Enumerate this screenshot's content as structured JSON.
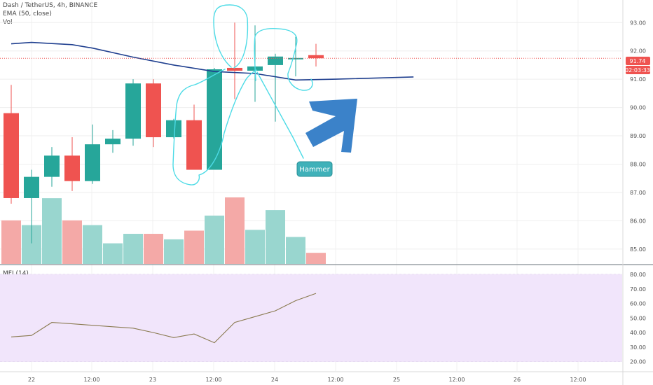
{
  "legend": {
    "symbol": "Dash / TetherUS, 4h, BINANCE",
    "ema": "EMA (50, close)",
    "vol": "Vol",
    "mfi": "MFI (14)"
  },
  "price_tags": {
    "last": "91.74",
    "countdown": "02:03:33"
  },
  "annotation": {
    "label": "Hammer"
  },
  "colors": {
    "up": "#26a69a",
    "down": "#ef5350",
    "vol_up": "#99d6cf",
    "vol_down": "#f4a9a7",
    "ema": "#1f3f8f",
    "mfi_line": "#8a7a50",
    "mfi_band": "#f1e5fb",
    "drawing": "#4ddbe6",
    "arrow": "#3b82c9",
    "note_bg": "#3fb1b9"
  },
  "chart_data": [
    {
      "type": "candlestick",
      "y_ticks": [
        "93.00",
        "92.00",
        "91.00",
        "90.00",
        "89.00",
        "88.00",
        "87.00",
        "86.00",
        "85.00"
      ],
      "x_ticks": [
        "22",
        "12:00",
        "23",
        "12:00",
        "24",
        "12:00",
        "25",
        "12:00",
        "26",
        "12:00"
      ],
      "ylim": [
        84.45,
        93.6
      ],
      "candles": [
        {
          "o": 89.8,
          "h": 90.8,
          "l": 86.6,
          "c": 86.8
        },
        {
          "o": 86.8,
          "h": 87.8,
          "l": 85.2,
          "c": 87.55
        },
        {
          "o": 87.55,
          "h": 88.6,
          "l": 87.2,
          "c": 88.3
        },
        {
          "o": 88.3,
          "h": 88.95,
          "l": 87.05,
          "c": 87.4
        },
        {
          "o": 87.4,
          "h": 89.4,
          "l": 87.3,
          "c": 88.7
        },
        {
          "o": 88.7,
          "h": 89.2,
          "l": 88.4,
          "c": 88.9
        },
        {
          "o": 88.9,
          "h": 91.0,
          "l": 88.65,
          "c": 90.85
        },
        {
          "o": 90.85,
          "h": 91.0,
          "l": 88.6,
          "c": 88.95
        },
        {
          "o": 88.95,
          "h": 89.6,
          "l": 88.9,
          "c": 89.55
        },
        {
          "o": 89.55,
          "h": 90.1,
          "l": 87.8,
          "c": 87.8
        },
        {
          "o": 87.8,
          "h": 91.4,
          "l": 87.8,
          "c": 91.35
        },
        {
          "o": 91.4,
          "h": 93.0,
          "l": 90.3,
          "c": 91.3
        },
        {
          "o": 91.3,
          "h": 92.9,
          "l": 90.2,
          "c": 91.45
        },
        {
          "o": 91.5,
          "h": 91.9,
          "l": 89.5,
          "c": 91.8
        },
        {
          "o": 91.75,
          "h": 92.5,
          "l": 91.1,
          "c": 91.75
        },
        {
          "o": 91.85,
          "h": 92.25,
          "l": 91.45,
          "c": 91.74
        }
      ],
      "ema": [
        {
          "i": 0,
          "v": 92.25
        },
        {
          "i": 1,
          "v": 92.3
        },
        {
          "i": 3,
          "v": 92.22
        },
        {
          "i": 4,
          "v": 92.1
        },
        {
          "i": 6,
          "v": 91.78
        },
        {
          "i": 8,
          "v": 91.5
        },
        {
          "i": 10,
          "v": 91.27
        },
        {
          "i": 12,
          "v": 91.2
        },
        {
          "i": 14,
          "v": 90.97
        },
        {
          "i": 16,
          "v": 91.0
        },
        {
          "i": 19.8,
          "v": 91.08
        }
      ],
      "volume": [
        5.5,
        4.9,
        8.3,
        5.5,
        4.9,
        2.6,
        3.8,
        3.8,
        3.1,
        4.2,
        6.1,
        8.4,
        4.3,
        6.8,
        3.4,
        1.4
      ]
    },
    {
      "type": "line",
      "title": "MFI (14)",
      "y_ticks": [
        "80.00",
        "70.00",
        "60.00",
        "50.00",
        "40.00",
        "30.00",
        "20.00"
      ],
      "ylim": [
        13.5,
        82
      ],
      "band": [
        20,
        80
      ],
      "values": [
        37,
        38,
        47,
        46,
        45,
        44,
        43,
        40,
        36.5,
        39,
        33,
        47,
        51,
        55,
        62,
        67
      ]
    }
  ]
}
